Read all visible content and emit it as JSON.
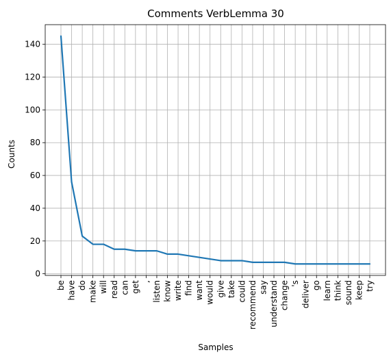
{
  "chart_data": {
    "type": "line",
    "title": "Comments VerbLemma 30",
    "xlabel": "Samples",
    "ylabel": "Counts",
    "categories": [
      "be",
      "have",
      "do",
      "make",
      "will",
      "read",
      "can",
      "get",
      ",",
      "listen",
      "know",
      "write",
      "find",
      "want",
      "would",
      "give",
      "take",
      "could",
      "recommend",
      "say",
      "understand",
      "change",
      "'s",
      "deliver",
      "go",
      "learn",
      "think",
      "sound",
      "keep",
      "try"
    ],
    "series": [
      {
        "values": [
          145,
          56,
          23,
          18,
          18,
          15,
          15,
          14,
          14,
          14,
          12,
          12,
          11,
          10,
          9,
          8,
          8,
          8,
          7,
          7,
          7,
          7,
          6,
          6,
          6,
          6,
          6,
          6,
          6,
          6
        ],
        "color": "#1f77b4"
      }
    ],
    "ylim": [
      -1,
      152
    ],
    "yticks": [
      0,
      20,
      40,
      60,
      80,
      100,
      120,
      140
    ],
    "grid": true,
    "legend": "none"
  }
}
